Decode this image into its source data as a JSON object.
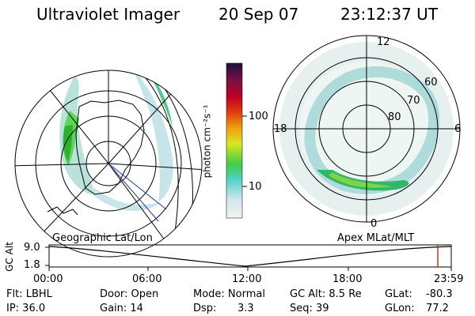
{
  "header": {
    "title": "Ultraviolet Imager",
    "date": "20 Sep 07",
    "time": "23:12:37 UT"
  },
  "colorbar": {
    "unit_label": "photon cm⁻²s⁻¹",
    "ticks": [
      "100",
      "10"
    ]
  },
  "polar_plot": {
    "mlt_labels": [
      "12",
      "18",
      "6",
      "0"
    ],
    "lat_labels": [
      "60",
      "70",
      "80"
    ]
  },
  "orbit_panel": {
    "left_label": "Geographic Lat/Lon",
    "right_label": "Apex MLat/MLT",
    "axis_label": "GC Alt",
    "y_ticks": [
      "9.0",
      "1.8"
    ],
    "x_ticks": [
      "00:00",
      "06:00",
      "12:00",
      "18:00",
      "23:59"
    ]
  },
  "info": {
    "filter": "Flt: LBHL",
    "ip": "IP: 36.0",
    "door": "Door: Open",
    "gain": "Gain: 14",
    "mode": "Mode: Normal",
    "dsp_label": "Dsp:",
    "dsp_value": "3.3",
    "gc_alt": "GC Alt: 8.5 Re",
    "seq": "Seq: 39",
    "glat_label": "GLat:",
    "glat_value": "-80.3",
    "glon_label": "GLon:",
    "glon_value": "77.2"
  },
  "colors": {
    "accent_marker": "#cc0000"
  }
}
